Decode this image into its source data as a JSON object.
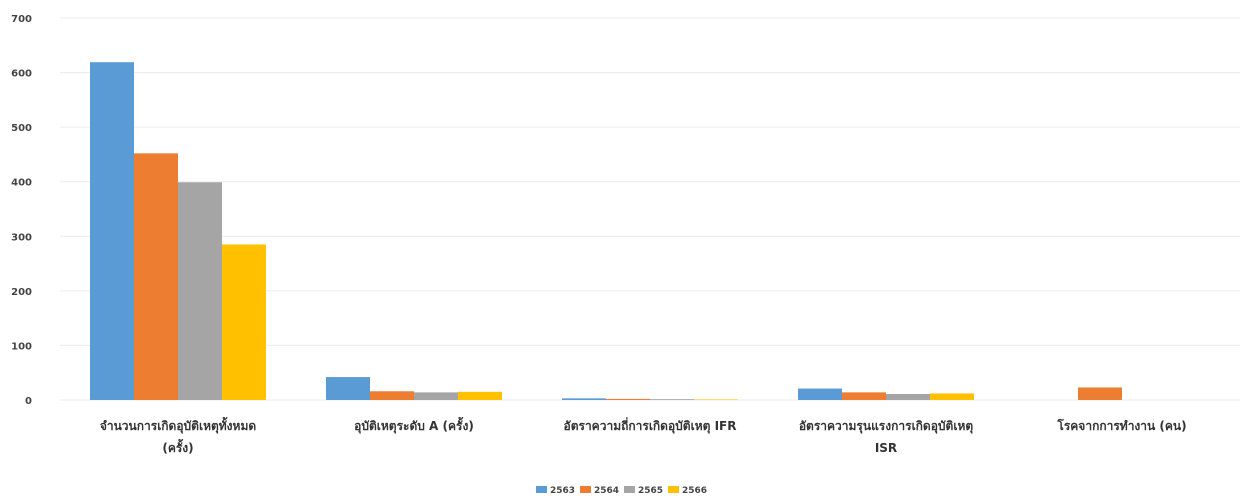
{
  "chart_data": {
    "type": "bar",
    "title": "",
    "xlabel": "",
    "ylabel": "",
    "ylim": [
      0,
      700
    ],
    "yticks": [
      "0",
      "100",
      "200",
      "300",
      "400",
      "500",
      "600",
      "700"
    ],
    "grid": true,
    "legend_position": "bottom",
    "categories": [
      [
        "จำนวนการเกิดอุบัติเหตุทั้งหมด",
        "(ครั้ง)"
      ],
      [
        "อุบัติเหตุระดับ A (ครั้ง)"
      ],
      [
        "อัตราความถี่การเกิดอุบัติเหตุ IFR"
      ],
      [
        "อัตราความรุนแรงการเกิดอุบัติเหตุ",
        "ISR"
      ],
      [
        "โรคจากการทำงาน (คน)"
      ]
    ],
    "series": [
      {
        "name": "2563",
        "color": "#5b9bd5",
        "values": [
          619,
          42,
          3,
          21,
          0
        ]
      },
      {
        "name": "2564",
        "color": "#ed7d31",
        "values": [
          452,
          16,
          2,
          14,
          23
        ]
      },
      {
        "name": "2565",
        "color": "#a5a5a5",
        "values": [
          399,
          14,
          1.5,
          11,
          0
        ]
      },
      {
        "name": "2566",
        "color": "#ffc000",
        "values": [
          285,
          15,
          1,
          12,
          0
        ]
      }
    ]
  }
}
